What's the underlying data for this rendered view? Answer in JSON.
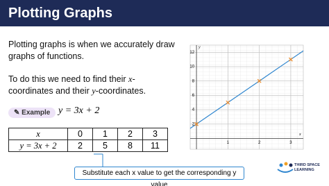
{
  "header": {
    "title": "Plotting Graphs"
  },
  "intro": "Plotting graphs is when we accurately draw graphs of functions.",
  "instruction": {
    "start": "To do this we need to find their",
    "x": "x",
    "middle": "-coordinates and their",
    "y": "y",
    "end": "-coordinates."
  },
  "example": {
    "badge": "Example",
    "equation": "y = 3x + 2"
  },
  "table": {
    "rows": [
      [
        "x",
        0,
        1,
        2,
        3
      ],
      [
        "y = 3x + 2",
        2,
        5,
        8,
        11
      ]
    ]
  },
  "callout": "Substitute each x value to get the corresponding y value",
  "chart": {
    "x_label": "x",
    "y_label": "y",
    "xlim": [
      -0.2,
      3.4
    ],
    "ylim": [
      -1.5,
      13
    ],
    "xticks": [
      1,
      2,
      3
    ],
    "yticks": [
      2,
      4,
      6,
      8,
      10,
      12
    ],
    "grid": true,
    "line_color": "#2f86cf",
    "marker_color": "#f08a24"
  },
  "logo": {
    "line1": "THIRD SPACE",
    "line2": "LEARNING"
  }
}
